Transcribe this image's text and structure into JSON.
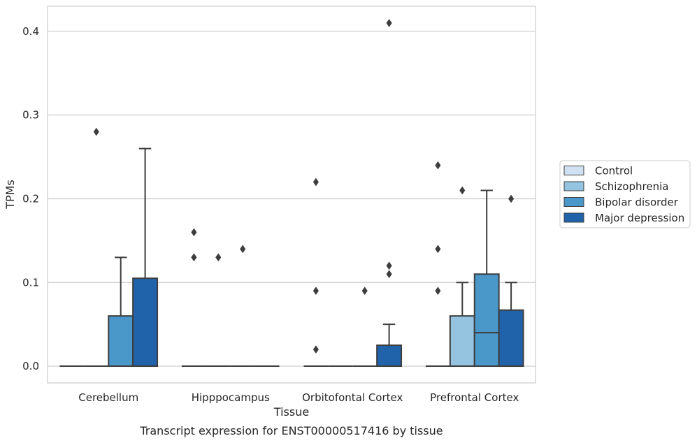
{
  "chart_data": {
    "type": "box",
    "title": "",
    "xlabel": "Tissue",
    "ylabel": "TPMs",
    "caption": "Transcript expression for ENST00000517416 by tissue",
    "ylim": [
      -0.02,
      0.43
    ],
    "yticks": [
      0.0,
      0.1,
      0.2,
      0.3,
      0.4
    ],
    "ytick_labels": [
      "0.0",
      "0.1",
      "0.2",
      "0.3",
      "0.4"
    ],
    "grid": "horizontal",
    "legend_position": "right",
    "categories": [
      "Cerebellum",
      "Hipppocampus",
      "Orbitofontal Cortex",
      "Prefrontal Cortex"
    ],
    "series": [
      {
        "name": "Control",
        "color": "#d0e1f2",
        "boxes": [
          {
            "q1": 0.0,
            "median": 0.0,
            "q3": 0.0,
            "whisker_low": 0.0,
            "whisker_high": 0.0,
            "outliers": []
          },
          {
            "q1": 0.0,
            "median": 0.0,
            "q3": 0.0,
            "whisker_low": 0.0,
            "whisker_high": 0.0,
            "outliers": [
              0.13,
              0.16
            ]
          },
          {
            "q1": 0.0,
            "median": 0.0,
            "q3": 0.0,
            "whisker_low": 0.0,
            "whisker_high": 0.0,
            "outliers": [
              0.02,
              0.09,
              0.22
            ]
          },
          {
            "q1": 0.0,
            "median": 0.0,
            "q3": 0.0,
            "whisker_low": 0.0,
            "whisker_high": 0.0,
            "outliers": [
              0.09,
              0.14,
              0.24
            ]
          }
        ]
      },
      {
        "name": "Schizophrenia",
        "color": "#94c4df",
        "boxes": [
          {
            "q1": 0.0,
            "median": 0.0,
            "q3": 0.0,
            "whisker_low": 0.0,
            "whisker_high": 0.0,
            "outliers": [
              0.28
            ]
          },
          {
            "q1": 0.0,
            "median": 0.0,
            "q3": 0.0,
            "whisker_low": 0.0,
            "whisker_high": 0.0,
            "outliers": [
              0.13
            ]
          },
          {
            "q1": 0.0,
            "median": 0.0,
            "q3": 0.0,
            "whisker_low": 0.0,
            "whisker_high": 0.0,
            "outliers": []
          },
          {
            "q1": 0.0,
            "median": 0.0,
            "q3": 0.06,
            "whisker_low": 0.0,
            "whisker_high": 0.1,
            "outliers": [
              0.21
            ]
          }
        ]
      },
      {
        "name": "Bipolar disorder",
        "color": "#4a98c9",
        "boxes": [
          {
            "q1": 0.0,
            "median": 0.0,
            "q3": 0.06,
            "whisker_low": 0.0,
            "whisker_high": 0.13,
            "outliers": []
          },
          {
            "q1": 0.0,
            "median": 0.0,
            "q3": 0.0,
            "whisker_low": 0.0,
            "whisker_high": 0.0,
            "outliers": [
              0.14
            ]
          },
          {
            "q1": 0.0,
            "median": 0.0,
            "q3": 0.0,
            "whisker_low": 0.0,
            "whisker_high": 0.0,
            "outliers": [
              0.09
            ]
          },
          {
            "q1": 0.0,
            "median": 0.04,
            "q3": 0.11,
            "whisker_low": 0.0,
            "whisker_high": 0.21,
            "outliers": []
          }
        ]
      },
      {
        "name": "Major depression",
        "color": "#2163aa",
        "boxes": [
          {
            "q1": 0.0,
            "median": 0.0,
            "q3": 0.105,
            "whisker_low": 0.0,
            "whisker_high": 0.26,
            "outliers": []
          },
          {
            "q1": 0.0,
            "median": 0.0,
            "q3": 0.0,
            "whisker_low": 0.0,
            "whisker_high": 0.0,
            "outliers": []
          },
          {
            "q1": 0.0,
            "median": 0.0,
            "q3": 0.025,
            "whisker_low": 0.0,
            "whisker_high": 0.05,
            "outliers": [
              0.11,
              0.12,
              0.41
            ]
          },
          {
            "q1": 0.0,
            "median": 0.0,
            "q3": 0.067,
            "whisker_low": 0.0,
            "whisker_high": 0.1,
            "outliers": [
              0.2
            ]
          }
        ]
      }
    ]
  }
}
